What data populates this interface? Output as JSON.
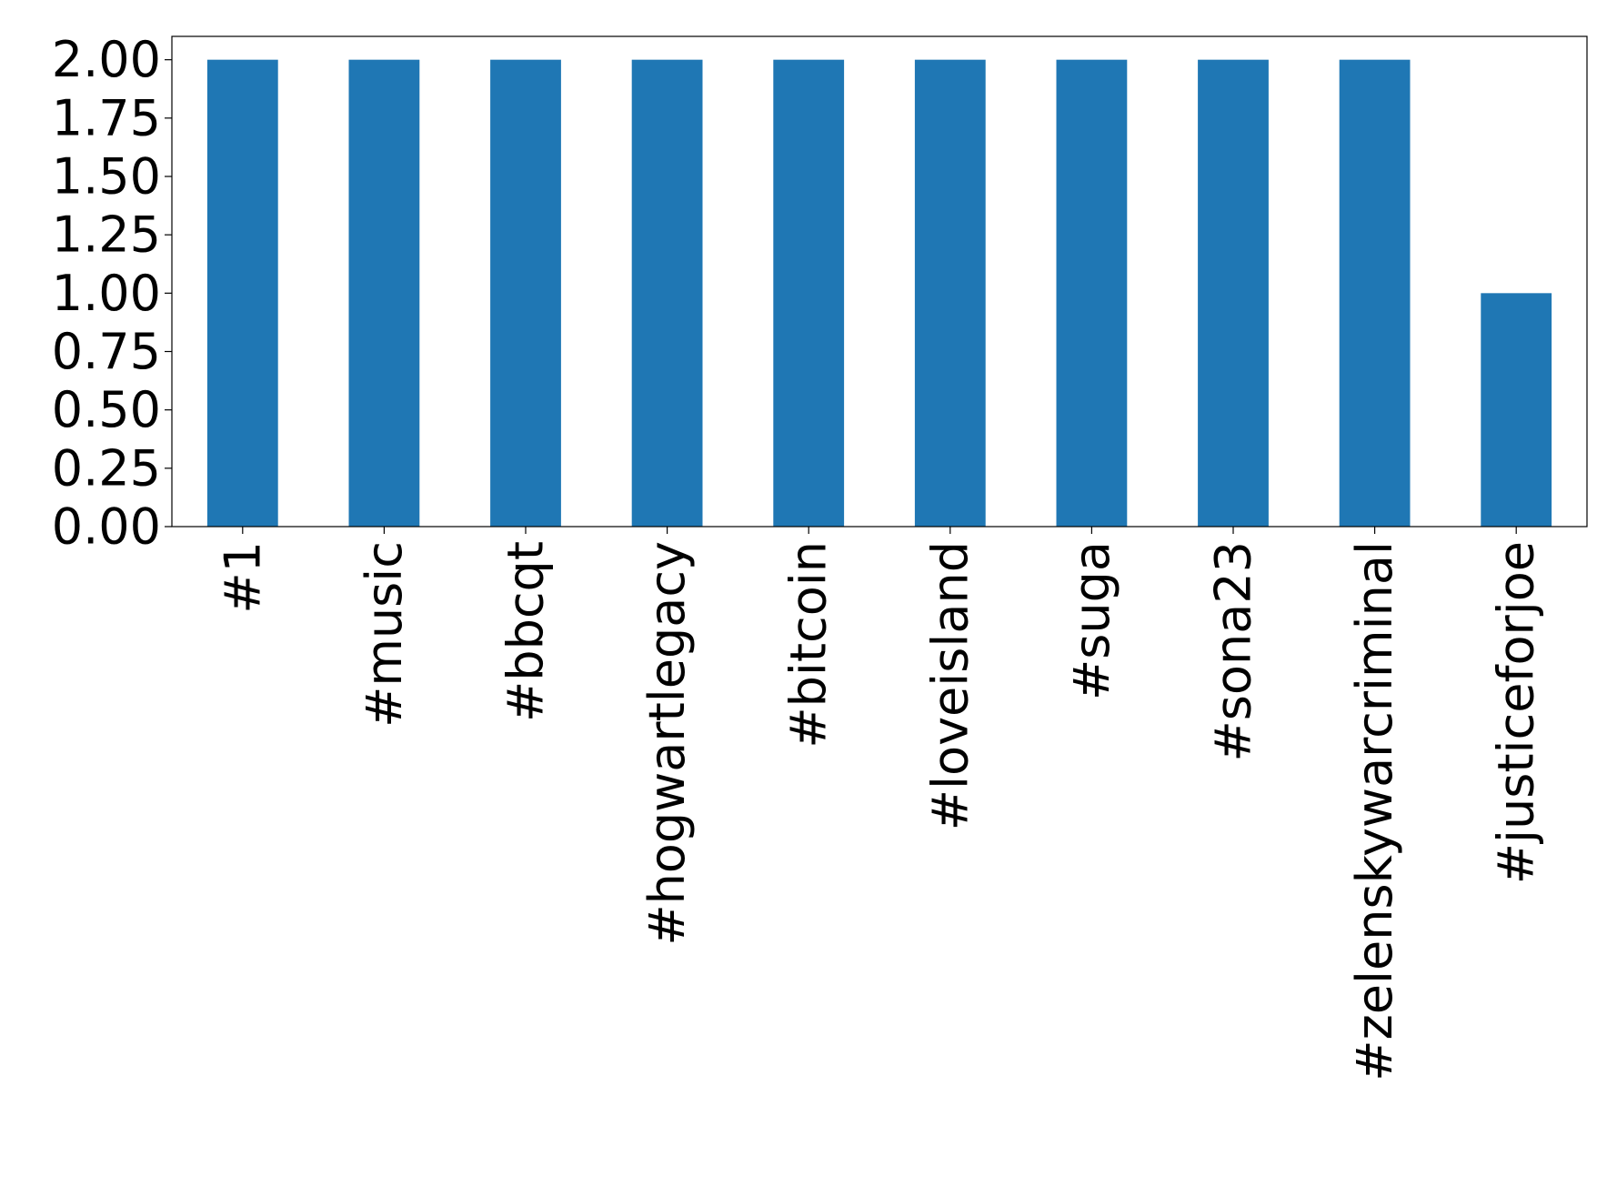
{
  "chart_data": {
    "type": "bar",
    "categories": [
      "#1",
      "#music",
      "#bbcqt",
      "#hogwartlegacy",
      "#bitcoin",
      "#loveisland",
      "#suga",
      "#sona23",
      "#zelenskywarcriminal",
      "#justiceforjoe"
    ],
    "values": [
      2,
      2,
      2,
      2,
      2,
      2,
      2,
      2,
      2,
      1
    ],
    "ylim": [
      0,
      2.1
    ],
    "yticks": [
      "0.00",
      "0.25",
      "0.50",
      "0.75",
      "1.00",
      "1.25",
      "1.50",
      "1.75",
      "2.00"
    ],
    "title": "",
    "xlabel": "",
    "ylabel": "",
    "grid": false,
    "legend": "none",
    "bar_color": "#1f77b4"
  }
}
